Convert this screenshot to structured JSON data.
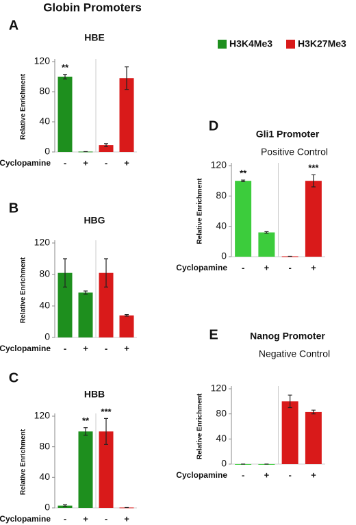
{
  "title": "Globin Promoters",
  "legend": [
    {
      "name": "H3K4Me3",
      "color": "#1e8f1e"
    },
    {
      "name": "H3K27Me3",
      "color": "#d91a1a"
    }
  ],
  "chart_data": [
    {
      "type": "bar",
      "label": "A",
      "title": "HBE",
      "ylabel": "Relative Enrichment",
      "xlabel": "Cyclopamine",
      "categories": [
        "-",
        "+"
      ],
      "ylim": [
        0,
        120
      ],
      "yticks": [
        0,
        40,
        80,
        120
      ],
      "series": [
        {
          "color": "#1e8f1e",
          "values": [
            100,
            0.5
          ],
          "errors": [
            3,
            0
          ]
        },
        {
          "color": "#d91a1a",
          "values": [
            9,
            98
          ],
          "errors": [
            2,
            15
          ]
        }
      ],
      "annotations": [
        {
          "text": "**",
          "series": 0,
          "index": 0
        }
      ]
    },
    {
      "type": "bar",
      "label": "B",
      "title": "HBG",
      "ylabel": "Relative Enrichment",
      "xlabel": "Cyclopamine",
      "categories": [
        "-",
        "+"
      ],
      "ylim": [
        0,
        120
      ],
      "yticks": [
        0,
        40,
        80,
        120
      ],
      "series": [
        {
          "color": "#1e8f1e",
          "values": [
            82,
            57
          ],
          "errors": [
            18,
            2
          ]
        },
        {
          "color": "#d91a1a",
          "values": [
            82,
            28
          ],
          "errors": [
            18,
            1
          ]
        }
      ],
      "annotations": []
    },
    {
      "type": "bar",
      "label": "C",
      "title": "HBB",
      "ylabel": "Relative Enrichment",
      "xlabel": "Cyclopamine",
      "categories": [
        "-",
        "+"
      ],
      "ylim": [
        0,
        120
      ],
      "yticks": [
        0,
        40,
        80,
        120
      ],
      "series": [
        {
          "color": "#1e8f1e",
          "values": [
            3,
            100
          ],
          "errors": [
            1,
            5
          ]
        },
        {
          "color": "#d91a1a",
          "values": [
            100,
            0.5
          ],
          "errors": [
            17,
            0
          ]
        }
      ],
      "annotations": [
        {
          "text": "**",
          "series": 0,
          "index": 1
        },
        {
          "text": "***",
          "series": 1,
          "index": 0
        }
      ]
    },
    {
      "type": "bar",
      "label": "D",
      "title": "Gli1 Promoter",
      "subtitle": "Positive Control",
      "ylabel": "Relative Enrichment",
      "xlabel": "Cyclopamine",
      "categories": [
        "-",
        "+"
      ],
      "ylim": [
        0,
        120
      ],
      "yticks": [
        0,
        40,
        80,
        120
      ],
      "series": [
        {
          "color": "#3ccc3c",
          "values": [
            100,
            32
          ],
          "errors": [
            1,
            1
          ]
        },
        {
          "color": "#d91a1a",
          "values": [
            0.5,
            100
          ],
          "errors": [
            0,
            8
          ]
        }
      ],
      "annotations": [
        {
          "text": "**",
          "series": 0,
          "index": 0
        },
        {
          "text": "***",
          "series": 1,
          "index": 1
        }
      ]
    },
    {
      "type": "bar",
      "label": "E",
      "title": "Nanog Promoter",
      "subtitle": "Negative Control",
      "ylabel": "Relative Enrichment",
      "xlabel": "Cyclopamine",
      "categories": [
        "-",
        "+"
      ],
      "ylim": [
        0,
        120
      ],
      "yticks": [
        0,
        40,
        80,
        120
      ],
      "series": [
        {
          "color": "#3ccc3c",
          "values": [
            0,
            0
          ],
          "errors": [
            0,
            0
          ]
        },
        {
          "color": "#d91a1a",
          "values": [
            100,
            83
          ],
          "errors": [
            10,
            3
          ]
        }
      ],
      "annotations": []
    }
  ]
}
